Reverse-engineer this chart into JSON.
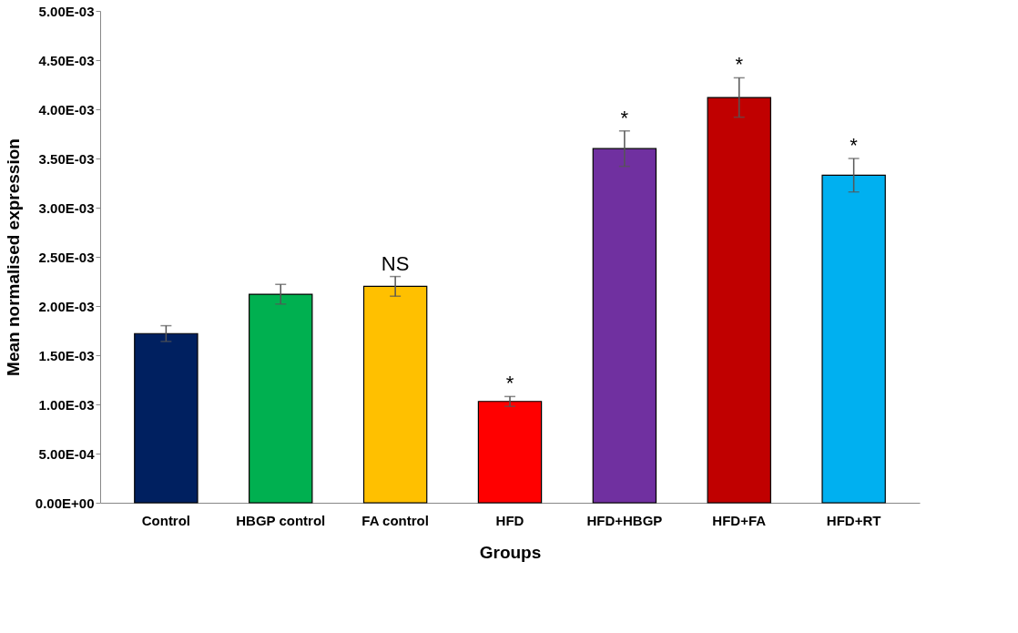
{
  "chart_data": {
    "type": "bar",
    "xlabel": "Groups",
    "ylabel": "Mean normalised expression",
    "categories": [
      "Control",
      "HBGP control",
      "FA control",
      "HFD",
      "HFD+HBGP",
      "HFD+FA",
      "HFD+RT"
    ],
    "values": [
      0.00172,
      0.00212,
      0.0022,
      0.00103,
      0.0036,
      0.00412,
      0.00333
    ],
    "colors": [
      "#002060",
      "#00b050",
      "#ffc000",
      "#ff0000",
      "#7030a0",
      "#c00000",
      "#00b0f0"
    ],
    "errors": [
      8e-05,
      0.0001,
      0.0001,
      5e-05,
      0.00018,
      0.0002,
      0.00017
    ],
    "ylim": [
      0,
      0.005
    ],
    "yticks": [
      {
        "value": 0,
        "label": "0.00E+00"
      },
      {
        "value": 0.0005,
        "label": "5.00E-04"
      },
      {
        "value": 0.001,
        "label": "1.00E-03"
      },
      {
        "value": 0.0015,
        "label": "1.50E-03"
      },
      {
        "value": 0.002,
        "label": "2.00E-03"
      },
      {
        "value": 0.0025,
        "label": "2.50E-03"
      },
      {
        "value": 0.003,
        "label": "3.00E-03"
      },
      {
        "value": 0.0035,
        "label": "3.50E-03"
      },
      {
        "value": 0.004,
        "label": "4.00E-03"
      },
      {
        "value": 0.0045,
        "label": "4.50E-03"
      },
      {
        "value": 0.005,
        "label": "5.00E-03"
      }
    ],
    "annotations": [
      {
        "text": "NS",
        "x": "FA control",
        "y": 0.0023
      },
      {
        "text": "*",
        "x": "HFD",
        "y": 0.00108
      },
      {
        "text": "*",
        "x": "HFD+HBGP",
        "y": 0.00378
      },
      {
        "text": "*",
        "x": "HFD+FA",
        "y": 0.00432
      },
      {
        "text": "*",
        "x": "HFD+RT",
        "y": 0.0035
      }
    ],
    "grid": false
  }
}
